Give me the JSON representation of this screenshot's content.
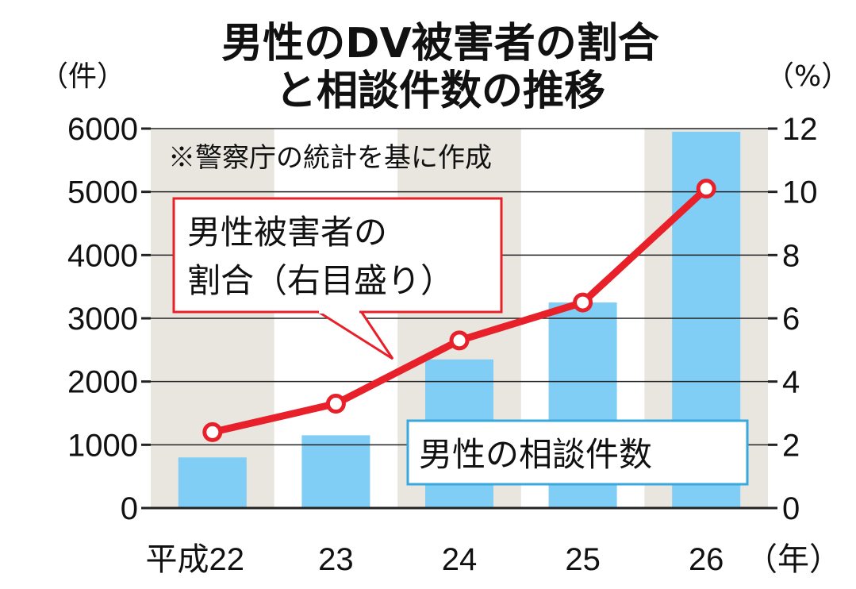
{
  "title_line1": "男性のDV被害者の割合",
  "title_line2": "と相談件数の推移",
  "left_unit": "（件）",
  "right_unit": "（%）",
  "note": "※警察庁の統計を基に作成",
  "ratio_callout_line1": "男性被害者の",
  "ratio_callout_line2": "割合（右目盛り）",
  "count_callout": "男性の相談件数",
  "year_unit": "（年）",
  "colors": {
    "bar": "#80cdf5",
    "line": "#e8202a",
    "band": "#e9e6e0",
    "grid": "#222222"
  },
  "chart_data": {
    "type": "bar+line",
    "categories": [
      "平成22",
      "23",
      "24",
      "25",
      "26"
    ],
    "left_axis": {
      "ylim": [
        0,
        6000
      ],
      "ticks": [
        "0",
        "1000",
        "2000",
        "3000",
        "4000",
        "5000",
        "6000"
      ]
    },
    "right_axis": {
      "ylim": [
        0,
        12
      ],
      "ticks": [
        "0",
        "2",
        "4",
        "6",
        "8",
        "10",
        "12"
      ]
    },
    "series": [
      {
        "name": "男性の相談件数",
        "type": "bar",
        "axis": "left",
        "values": [
          800,
          1150,
          2350,
          3250,
          5950
        ]
      },
      {
        "name": "男性被害者の割合",
        "type": "line",
        "axis": "right",
        "values": [
          2.4,
          3.3,
          5.3,
          6.5,
          10.1
        ]
      }
    ],
    "grid": true
  }
}
